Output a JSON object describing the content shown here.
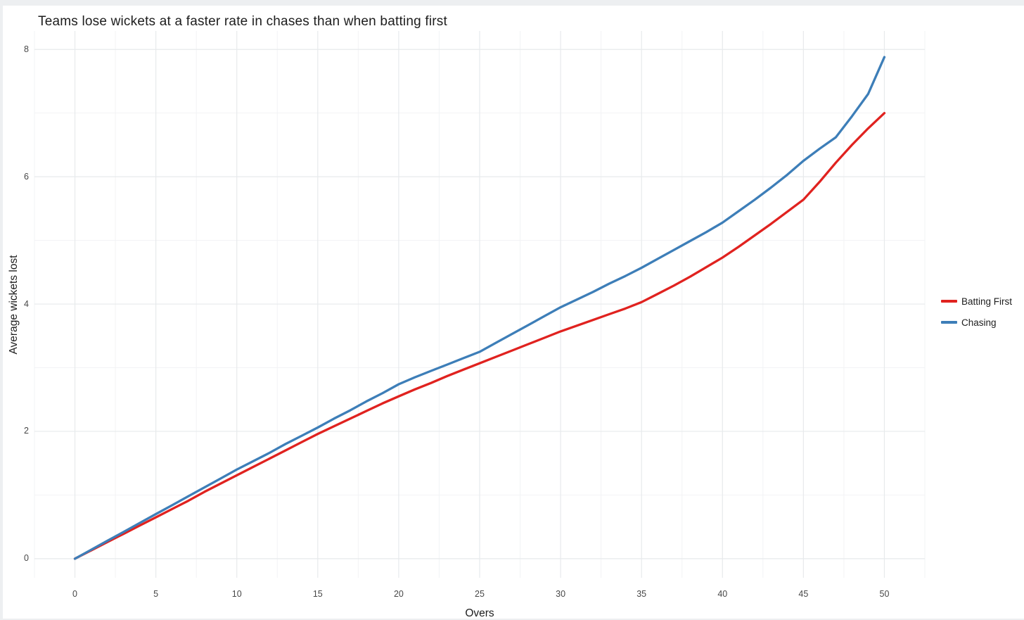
{
  "chart_data": {
    "type": "line",
    "title": "Teams lose wickets at a faster rate in chases than when batting first",
    "xlabel": "Overs",
    "ylabel": "Average wickets lost",
    "x_ticks": [
      0,
      5,
      10,
      15,
      20,
      25,
      30,
      35,
      40,
      45,
      50
    ],
    "y_ticks": [
      0,
      2,
      4,
      6,
      8
    ],
    "x_minor_ticks": [
      -2.5,
      2.5,
      7.5,
      12.5,
      17.5,
      22.5,
      27.5,
      32.5,
      37.5,
      42.5,
      47.5,
      52.5
    ],
    "y_minor_ticks": [
      1,
      3,
      5,
      7
    ],
    "xlim": [
      -2.5,
      52.5
    ],
    "ylim": [
      -0.3,
      8.29
    ],
    "grid": "major+minor",
    "legend_position": "right",
    "colors": {
      "major_grid": "#e7eaec",
      "minor_grid": "#f2f3f5",
      "title_text": "#1d1d1d",
      "tick_text": "#474747",
      "panel_background": "#ffffff",
      "page_border": "#edeff1"
    },
    "x": [
      0,
      1,
      2,
      3,
      4,
      5,
      6,
      7,
      8,
      9,
      10,
      11,
      12,
      13,
      14,
      15,
      16,
      17,
      18,
      19,
      20,
      21,
      22,
      23,
      24,
      25,
      26,
      27,
      28,
      29,
      30,
      31,
      32,
      33,
      34,
      35,
      36,
      37,
      38,
      39,
      40,
      41,
      42,
      43,
      44,
      45,
      46,
      47,
      48,
      49,
      50
    ],
    "series": [
      {
        "name": "Batting First",
        "color": "#e0221f",
        "values": [
          0,
          0.13,
          0.26,
          0.39,
          0.52,
          0.65,
          0.78,
          0.91,
          1.05,
          1.18,
          1.31,
          1.44,
          1.57,
          1.7,
          1.83,
          1.96,
          2.08,
          2.2,
          2.32,
          2.44,
          2.55,
          2.66,
          2.76,
          2.87,
          2.97,
          3.07,
          3.17,
          3.27,
          3.37,
          3.47,
          3.57,
          3.66,
          3.75,
          3.84,
          3.93,
          4.03,
          4.16,
          4.29,
          4.43,
          4.58,
          4.73,
          4.9,
          5.08,
          5.26,
          5.45,
          5.64,
          5.92,
          6.22,
          6.5,
          6.76,
          7.0
        ]
      },
      {
        "name": "Chasing",
        "color": "#3d7eb8",
        "values": [
          0,
          0.14,
          0.28,
          0.42,
          0.56,
          0.7,
          0.84,
          0.98,
          1.12,
          1.26,
          1.4,
          1.53,
          1.66,
          1.8,
          1.93,
          2.06,
          2.2,
          2.33,
          2.47,
          2.6,
          2.74,
          2.85,
          2.95,
          3.05,
          3.15,
          3.25,
          3.39,
          3.53,
          3.67,
          3.81,
          3.95,
          4.07,
          4.19,
          4.32,
          4.44,
          4.57,
          4.71,
          4.85,
          4.99,
          5.13,
          5.28,
          5.46,
          5.64,
          5.83,
          6.03,
          6.25,
          6.44,
          6.62,
          6.95,
          7.3,
          7.88
        ]
      }
    ]
  }
}
